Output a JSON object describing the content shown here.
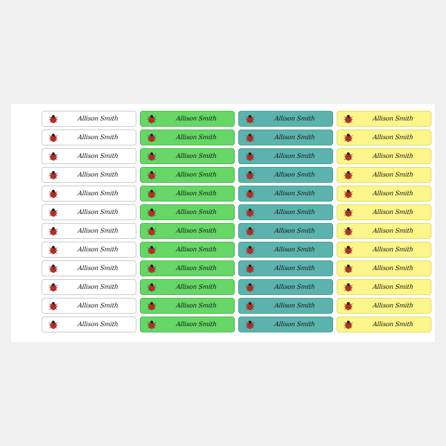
{
  "label_text": "Allison Smith",
  "icon": "ladybug-icon",
  "colors": {
    "white": "#ffffff",
    "green": "#66d666",
    "teal": "#5cb3ad",
    "yellow": "#fbf58a",
    "ladybug_red": "#d9342b"
  },
  "columns": [
    {
      "id": "white",
      "rows": 12
    },
    {
      "id": "green",
      "rows": 12
    },
    {
      "id": "teal",
      "rows": 12
    },
    {
      "id": "yellow",
      "rows": 12
    }
  ]
}
